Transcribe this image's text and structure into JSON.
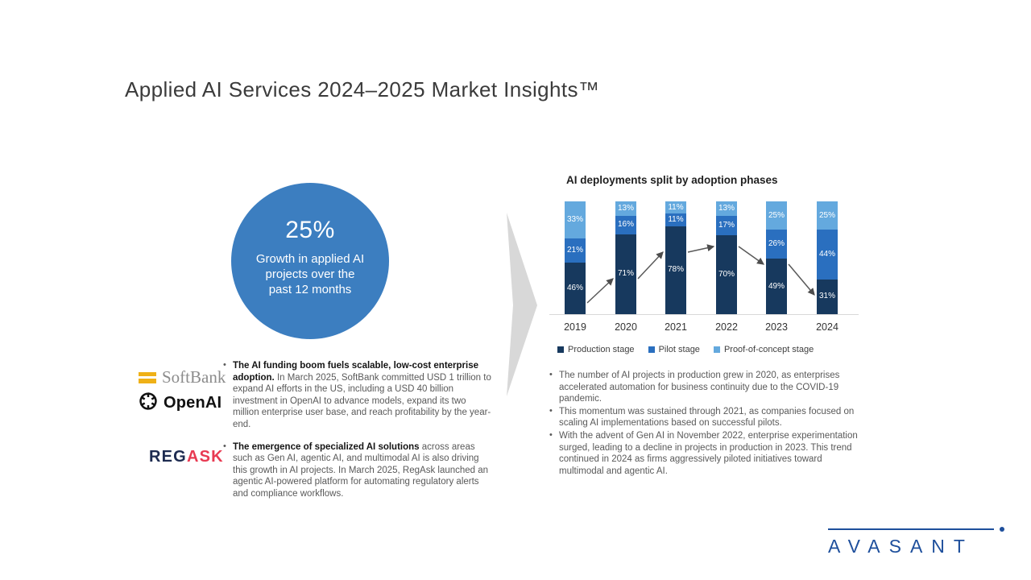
{
  "slide": {
    "title": "Applied AI Services 2024–2025 Market Insights™"
  },
  "stat_circle": {
    "value": "25%",
    "caption": "Growth in applied AI projects over the past 12 months",
    "color": "#3c7ec0"
  },
  "logos": {
    "softbank_text": "SoftBank",
    "softbank_color": "#efb117",
    "openai_text": "OpenAI",
    "regask_text_primary": "REG",
    "regask_text_secondary": "ASK",
    "regask_primary_color": "#1d2b50",
    "regask_secondary_color": "#e83a52",
    "avasant_text": "AVASANT",
    "avasant_color": "#1e4f9c"
  },
  "left_bullets": [
    {
      "bold": "The AI funding boom fuels scalable, low-cost enterprise adoption.",
      "text": " In March 2025, SoftBank committed USD 1 trillion to expand AI efforts in the US, including a USD 40 billion investment in OpenAI to advance models, expand its two million enterprise user base, and reach profitability by the year-end."
    },
    {
      "bold": "The emergence of specialized AI solutions",
      "text": " across areas such as Gen AI, agentic AI, and multimodal AI is also driving this growth in AI projects. In March 2025, RegAsk launched an agentic AI-powered platform for automating regulatory alerts and compliance workflows."
    }
  ],
  "right_bullets": [
    "The number of AI projects in production grew in 2020, as enterprises accelerated automation for business continuity due to the COVID-19 pandemic.",
    "This momentum was sustained through 2021, as companies focused on scaling AI implementations based on successful pilots.",
    "With the advent of Gen AI in November 2022, enterprise experimentation surged, leading to a decline in projects in production in 2023. This trend continued in 2024 as firms aggressively piloted initiatives toward multimodal and agentic AI."
  ],
  "chart_data": {
    "type": "bar",
    "stacked": true,
    "title": "AI deployments split by adoption phases",
    "categories": [
      "2019",
      "2020",
      "2021",
      "2022",
      "2023",
      "2024"
    ],
    "series": [
      {
        "name": "Production stage",
        "color": "#17395e",
        "values": [
          46,
          71,
          78,
          70,
          49,
          31
        ]
      },
      {
        "name": "Pilot stage",
        "color": "#2a6fbf",
        "values": [
          21,
          16,
          11,
          17,
          26,
          44
        ]
      },
      {
        "name": "Proof-of-concept stage",
        "color": "#64a9de",
        "values": [
          33,
          13,
          11,
          13,
          25,
          25
        ]
      }
    ],
    "value_suffix": "%",
    "ylim": [
      0,
      100
    ],
    "grid": false,
    "legend_position": "bottom",
    "annotation": "arrow line tracking production-stage trend rising 2019–2021 then declining to 2024"
  }
}
